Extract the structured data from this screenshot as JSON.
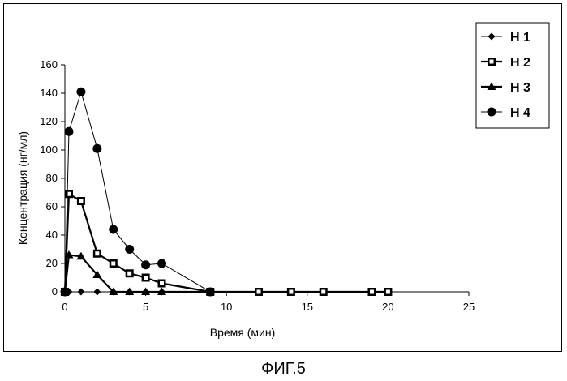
{
  "chart_data": {
    "type": "line",
    "title": "",
    "xlabel": "Время (мин)",
    "ylabel": "Концентрация (нг/мл)",
    "xlim": [
      0,
      25
    ],
    "ylim": [
      0,
      160
    ],
    "xticks": [
      0,
      5,
      10,
      15,
      20,
      25
    ],
    "yticks": [
      0,
      20,
      40,
      60,
      80,
      100,
      120,
      140,
      160
    ],
    "grid": false,
    "legend_position": "top-right",
    "series": [
      {
        "name": "H 1",
        "marker": "diamond",
        "points": [
          [
            0,
            0
          ],
          [
            0.25,
            0
          ],
          [
            1,
            0
          ],
          [
            2,
            0
          ],
          [
            3,
            0
          ],
          [
            4,
            0
          ],
          [
            5,
            0
          ],
          [
            6,
            0
          ],
          [
            9,
            0
          ],
          [
            12,
            0
          ],
          [
            14,
            0
          ],
          [
            16,
            0
          ],
          [
            19,
            0
          ],
          [
            20,
            0
          ]
        ]
      },
      {
        "name": "H 2",
        "marker": "square",
        "points": [
          [
            0,
            0
          ],
          [
            0.25,
            69
          ],
          [
            1,
            64
          ],
          [
            2,
            27
          ],
          [
            3,
            20
          ],
          [
            4,
            13
          ],
          [
            5,
            10
          ],
          [
            6,
            6
          ],
          [
            9,
            0
          ],
          [
            12,
            0
          ],
          [
            14,
            0
          ],
          [
            16,
            0
          ],
          [
            19,
            0
          ],
          [
            20,
            0
          ]
        ]
      },
      {
        "name": "H 3",
        "marker": "triangle",
        "points": [
          [
            0,
            0
          ],
          [
            0.25,
            26
          ],
          [
            1,
            25
          ],
          [
            2,
            12
          ],
          [
            3,
            0
          ],
          [
            4,
            0
          ],
          [
            5,
            0
          ],
          [
            6,
            0
          ],
          [
            9,
            0
          ]
        ]
      },
      {
        "name": "H 4",
        "marker": "circle",
        "points": [
          [
            0,
            0
          ],
          [
            0.25,
            113
          ],
          [
            1,
            141
          ],
          [
            2,
            101
          ],
          [
            3,
            44
          ],
          [
            4,
            30
          ],
          [
            5,
            19
          ],
          [
            6,
            20
          ],
          [
            9,
            0
          ]
        ]
      }
    ]
  },
  "caption": "ФИГ.5"
}
